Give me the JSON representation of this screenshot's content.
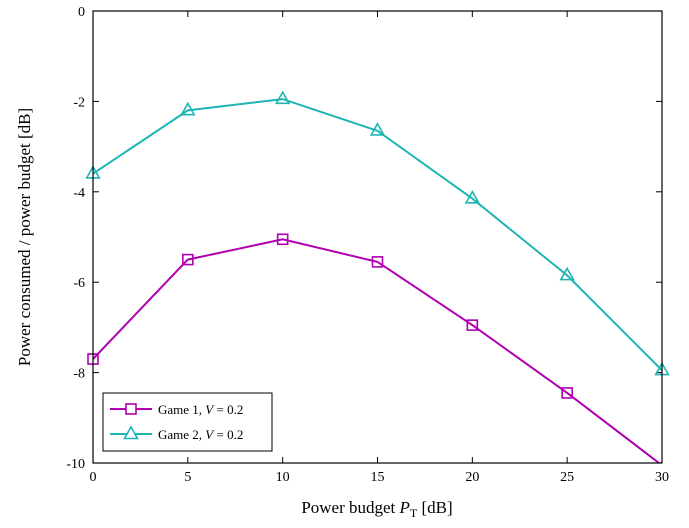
{
  "chart_data": {
    "type": "line",
    "title": "",
    "xlabel": "Power budget",
    "xlabel_symbol": "P",
    "xlabel_subscript": "T",
    "xlabel_unit": "[dB]",
    "ylabel": "Power consumed / power budget [dB]",
    "xlim": [
      0,
      30
    ],
    "ylim": [
      -10,
      0
    ],
    "x": [
      0,
      5,
      10,
      15,
      20,
      25,
      30
    ],
    "xticks": [
      "0",
      "5",
      "10",
      "15",
      "20",
      "25",
      "30"
    ],
    "yticks": [
      "0",
      "-2",
      "-4",
      "-6",
      "-8",
      "-10"
    ],
    "ytick_values": [
      0,
      -2,
      -4,
      -6,
      -8,
      -10
    ],
    "grid": false,
    "legend_position": "bottom-left",
    "series": [
      {
        "name": "Game 1, V = 0.2",
        "legend_prefix": "Game 1, ",
        "legend_var": "V",
        "legend_suffix": " = 0.2",
        "color": "#b000b0",
        "marker": "square",
        "values": [
          -7.7,
          -5.5,
          -5.05,
          -5.55,
          -6.95,
          -8.45,
          -10.05
        ]
      },
      {
        "name": "Game 2, V = 0.2",
        "legend_prefix": "Game 2, ",
        "legend_var": "V",
        "legend_suffix": " = 0.2",
        "color": "#1eb4b4",
        "marker": "triangle",
        "values": [
          -3.6,
          -2.2,
          -1.95,
          -2.65,
          -4.15,
          -5.85,
          -7.95
        ]
      }
    ]
  }
}
